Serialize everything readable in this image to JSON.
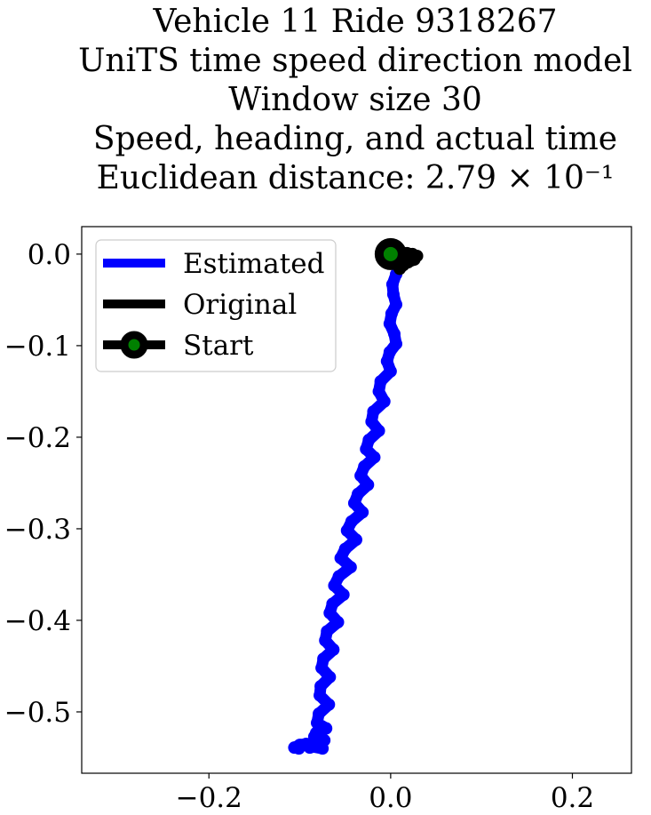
{
  "chart_data": {
    "type": "line",
    "title_lines": [
      "Vehicle 11 Ride 9318267",
      "UniTS time speed direction model",
      "Window size 30",
      "Speed, heading, and actual time",
      "Euclidean distance: 2.79 × 10⁻¹"
    ],
    "xlabel": "",
    "ylabel": "",
    "xlim": [
      -0.34,
      0.265
    ],
    "ylim": [
      -0.567,
      0.03
    ],
    "xticks": [
      -0.2,
      0.0,
      0.2
    ],
    "xtick_labels": [
      "−0.2",
      "0.0",
      "0.2"
    ],
    "yticks": [
      0.0,
      -0.1,
      -0.2,
      -0.3,
      -0.4,
      -0.5
    ],
    "ytick_labels": [
      "0.0",
      "−0.1",
      "−0.2",
      "−0.3",
      "−0.4",
      "−0.5"
    ],
    "grid": false,
    "legend_position": "upper-left",
    "series": [
      {
        "name": "Estimated",
        "color": "#0000ff",
        "x": [
          0.0,
          0.012,
          0.01,
          0.006,
          0.002,
          0.003,
          0.006,
          0.001,
          -0.001,
          0.004,
          0.006,
          -0.001,
          -0.004,
          0.0,
          -0.011,
          -0.013,
          -0.007,
          -0.019,
          -0.021,
          -0.013,
          -0.024,
          -0.027,
          -0.018,
          -0.029,
          -0.033,
          -0.025,
          -0.036,
          -0.04,
          -0.031,
          -0.043,
          -0.048,
          -0.038,
          -0.05,
          -0.055,
          -0.044,
          -0.057,
          -0.062,
          -0.052,
          -0.064,
          -0.067,
          -0.058,
          -0.07,
          -0.072,
          -0.063,
          -0.074,
          -0.076,
          -0.067,
          -0.077,
          -0.078,
          -0.068,
          -0.079,
          -0.081,
          -0.071,
          -0.082,
          -0.084,
          -0.073,
          -0.085,
          -0.087,
          -0.075,
          -0.086,
          -0.089,
          -0.081,
          -0.093,
          -0.1,
          -0.106,
          -0.101
        ],
        "y": [
          0.0,
          -0.003,
          -0.012,
          -0.022,
          -0.033,
          -0.044,
          -0.055,
          -0.065,
          -0.076,
          -0.087,
          -0.098,
          -0.107,
          -0.117,
          -0.128,
          -0.139,
          -0.15,
          -0.161,
          -0.172,
          -0.183,
          -0.193,
          -0.203,
          -0.213,
          -0.222,
          -0.232,
          -0.242,
          -0.252,
          -0.262,
          -0.272,
          -0.282,
          -0.292,
          -0.302,
          -0.312,
          -0.322,
          -0.332,
          -0.342,
          -0.352,
          -0.362,
          -0.372,
          -0.382,
          -0.392,
          -0.402,
          -0.412,
          -0.422,
          -0.432,
          -0.442,
          -0.452,
          -0.462,
          -0.472,
          -0.482,
          -0.492,
          -0.502,
          -0.512,
          -0.518,
          -0.523,
          -0.527,
          -0.531,
          -0.534,
          -0.537,
          -0.54,
          -0.538,
          -0.539,
          -0.537,
          -0.535,
          -0.536,
          -0.539,
          -0.54
        ]
      },
      {
        "name": "Original",
        "color": "#000000",
        "x": [
          0.0,
          0.006,
          0.012,
          0.018,
          0.024,
          0.029,
          0.026,
          0.019,
          0.013,
          0.009,
          0.014,
          0.02,
          0.025,
          0.021,
          0.014,
          0.01
        ],
        "y": [
          0.0,
          0.001,
          0.002,
          0.001,
          0.0,
          -0.002,
          -0.006,
          -0.009,
          -0.011,
          -0.013,
          -0.01,
          -0.006,
          -0.004,
          -0.007,
          -0.012,
          -0.016
        ]
      }
    ],
    "start_marker": {
      "name": "Start",
      "x": 0.0,
      "y": 0.0,
      "face_color": "#008000",
      "edge_color": "#000000"
    }
  }
}
